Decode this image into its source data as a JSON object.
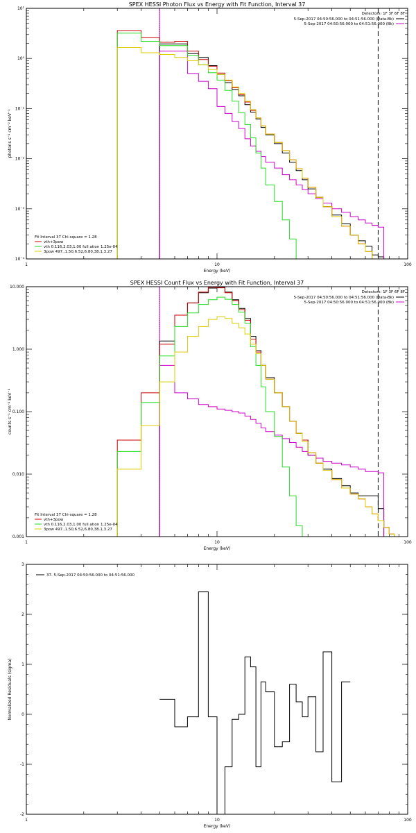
{
  "chart_data": [
    {
      "type": "line",
      "title": "SPEX HESSI Photon Flux vs Energy with Fit Function, Interval 37",
      "xlabel": "Energy (keV)",
      "ylabel": "photons s⁻¹ cm⁻² keV⁻¹",
      "xscale": "log",
      "yscale": "log",
      "xlim": [
        1,
        100
      ],
      "ylim": [
        0.0001,
        10
      ],
      "xticks": [
        {
          "v": 1,
          "label": "1"
        },
        {
          "v": 10,
          "label": "10"
        },
        {
          "v": 100,
          "label": "100"
        }
      ],
      "yticks": [
        {
          "v": 0.0001,
          "label": "10⁻⁴"
        },
        {
          "v": 0.001,
          "label": "10⁻³"
        },
        {
          "v": 0.01,
          "label": "10⁻²"
        },
        {
          "v": 0.1,
          "label": "10⁻¹"
        },
        {
          "v": 1,
          "label": "10⁰"
        },
        {
          "v": 10,
          "label": "10¹"
        }
      ],
      "vlines": [
        {
          "x": 5,
          "style": "dotted",
          "color": "#000000"
        },
        {
          "x": 5,
          "style": "solid",
          "color": "#cc00cc"
        },
        {
          "x": 70,
          "style": "dashed",
          "color": "#000000"
        }
      ],
      "legend_tr_title": "Detectors: 1F 3F 6F 8F",
      "legend_tr": [
        {
          "label": "5-Sep-2017 04:50:56.000 to 04:51:56.000 (Data-Bk)",
          "color": "#000000"
        },
        {
          "label": "5-Sep-2017 04:50:56.000 to 04:51:56.000 (Bk)",
          "color": "#cc00cc"
        }
      ],
      "legend_bl_title": "Fit Interval 37   Chi-square = 1.28",
      "legend_bl": [
        {
          "label": "vth+3pow",
          "color": "#cc0000"
        },
        {
          "label": "vth 0.116,2.03,1.00  full ation 1.25e-04",
          "color": "#22dd22"
        },
        {
          "label": "3pow 497.,1.50,6.52,6.80,38.1,3.27",
          "color": "#ddcc00"
        }
      ],
      "edges": [
        3,
        4,
        5,
        6,
        7,
        8,
        9,
        10,
        11,
        12,
        13,
        14,
        15,
        16,
        17,
        18,
        20,
        22,
        24,
        26,
        28,
        30,
        33,
        36,
        40,
        45,
        50,
        55,
        60,
        65,
        70,
        75
      ],
      "series": [
        {
          "name": "Data-Bk",
          "color": "#000000",
          "start": 2,
          "values": [
            1.95,
            1.95,
            1.25,
            1.05,
            0.72,
            0.48,
            0.33,
            0.24,
            0.18,
            0.12,
            0.085,
            0.062,
            0.042,
            0.03,
            0.02,
            0.013,
            0.0085,
            0.0058,
            0.0038,
            0.0025,
            0.0017,
            0.0011,
            0.00075,
            0.0005,
            0.0003,
            0.00023,
            0.00018,
            0.00012,
            0.00011
          ]
        },
        {
          "name": "Bk",
          "color": "#cc00cc",
          "start": 2,
          "values": [
            1.4,
            1.4,
            0.5,
            0.35,
            0.25,
            0.11,
            0.08,
            0.055,
            0.04,
            0.025,
            0.018,
            0.014,
            0.011,
            0.0085,
            0.0065,
            0.0048,
            0.0038,
            0.003,
            0.0024,
            0.002,
            0.0016,
            0.0013,
            0.001,
            0.00085,
            0.0007,
            0.0006,
            0.00052,
            0.00047,
            0.00043
          ]
        },
        {
          "name": "vth+3pow",
          "color": "#cc0000",
          "start": 0,
          "values": [
            3.6,
            2.6,
            2.1,
            2.2,
            1.4,
            0.95,
            0.7,
            0.51,
            0.36,
            0.26,
            0.19,
            0.135,
            0.092,
            0.065,
            0.045,
            0.031,
            0.021,
            0.0145,
            0.0095,
            0.0063,
            0.0041,
            0.0027,
            0.0017,
            0.0011,
            0.0007,
            0.00045,
            0.0003,
            0.0002,
            0.00014,
            0.0001,
            0.0001
          ]
        },
        {
          "name": "vth",
          "color": "#22dd22",
          "start": 0,
          "values": [
            3.2,
            2.2,
            1.8,
            1.8,
            1.15,
            0.75,
            0.52,
            0.37,
            0.23,
            0.14,
            0.082,
            0.048,
            0.026,
            0.013,
            0.0065,
            0.003,
            0.0014,
            0.0006,
            0.00025,
            0.0001,
            0.0001
          ]
        },
        {
          "name": "3pow",
          "color": "#ddcc00",
          "start": 0,
          "values": [
            1.65,
            1.3,
            1.2,
            1.05,
            0.9,
            0.75,
            0.6,
            0.48,
            0.37,
            0.27,
            0.2,
            0.14,
            0.095,
            0.065,
            0.045,
            0.031,
            0.021,
            0.0145,
            0.0095,
            0.0063,
            0.0041,
            0.0027,
            0.0017,
            0.0011,
            0.0007,
            0.00045,
            0.0003,
            0.0002,
            0.00014,
            0.0001,
            0.0001
          ]
        }
      ]
    },
    {
      "type": "line",
      "title": "SPEX HESSI Count Flux vs Energy with Fit Function, Interval 37",
      "xlabel": "Energy (keV)",
      "ylabel": "counts s⁻¹ cm⁻² keV⁻¹",
      "xscale": "log",
      "yscale": "log",
      "xlim": [
        1,
        100
      ],
      "ylim": [
        0.001,
        10
      ],
      "xticks": [
        {
          "v": 1,
          "label": "1"
        },
        {
          "v": 10,
          "label": "10"
        },
        {
          "v": 100,
          "label": "100"
        }
      ],
      "yticks": [
        {
          "v": 0.001,
          "label": "0.001"
        },
        {
          "v": 0.01,
          "label": "0.010"
        },
        {
          "v": 0.1,
          "label": "0.100"
        },
        {
          "v": 1,
          "label": "1.000"
        },
        {
          "v": 10,
          "label": "10.000"
        }
      ],
      "vlines": [
        {
          "x": 5,
          "style": "dotted",
          "color": "#000000"
        },
        {
          "x": 5,
          "style": "solid",
          "color": "#cc00cc"
        },
        {
          "x": 70,
          "style": "dashed",
          "color": "#000000"
        }
      ],
      "legend_tr_title": "Detectors: 1F 3F 6F 8F",
      "legend_tr": [
        {
          "label": "5-Sep-2017 04:50:56.000 to 04:51:56.000 (Data-Bk)",
          "color": "#000000"
        },
        {
          "label": "5-Sep-2017 04:50:56.000 to 04:51:56.000 (Bk)",
          "color": "#cc00cc"
        }
      ],
      "legend_bl_title": "Fit Interval 37   Chi-square = 1.28",
      "legend_bl": [
        {
          "label": "vth+3pow",
          "color": "#cc0000"
        },
        {
          "label": "vth 0.116,2.03,1.00  full ation 1.25e-04",
          "color": "#22dd22"
        },
        {
          "label": "3pow 497.,1.50,6.52,6.80,38.1,3.27",
          "color": "#ddcc00"
        }
      ],
      "edges": [
        3,
        4,
        5,
        6,
        7,
        8,
        9,
        10,
        11,
        12,
        13,
        14,
        15,
        16,
        17,
        18,
        20,
        22,
        24,
        26,
        28,
        30,
        33,
        36,
        40,
        45,
        50,
        55,
        60,
        65,
        70,
        75,
        80,
        85
      ],
      "series": [
        {
          "name": "Data-Bk",
          "color": "#000000",
          "start": 2,
          "values": [
            1.35,
            3.5,
            5.5,
            8.0,
            9.5,
            9.8,
            8.2,
            6.2,
            4.5,
            3.1,
            1.6,
            0.95,
            0.55,
            0.35,
            0.2,
            0.12,
            0.07,
            0.045,
            0.035,
            0.02,
            0.015,
            0.012,
            0.0085,
            0.0065,
            0.005,
            0.0045,
            0.0045,
            0.0045,
            0.0028
          ]
        },
        {
          "name": "Bk",
          "color": "#cc00cc",
          "start": 2,
          "values": [
            0.55,
            0.2,
            0.16,
            0.13,
            0.12,
            0.11,
            0.105,
            0.1,
            0.095,
            0.085,
            0.075,
            0.065,
            0.055,
            0.048,
            0.042,
            0.037,
            0.032,
            0.027,
            0.023,
            0.02,
            0.018,
            0.016,
            0.015,
            0.014,
            0.013,
            0.012,
            0.011,
            0.011,
            0.0105
          ]
        },
        {
          "name": "vth+3pow",
          "color": "#cc0000",
          "start": 0,
          "values": [
            0.035,
            0.2,
            1.2,
            3.5,
            5.5,
            8.2,
            9.8,
            9.6,
            8.0,
            6.0,
            4.3,
            2.9,
            1.45,
            0.9,
            0.55,
            0.33,
            0.2,
            0.12,
            0.07,
            0.045,
            0.035,
            0.022,
            0.015,
            0.0115,
            0.0082,
            0.006,
            0.0048,
            0.004,
            0.003,
            0.0023,
            0.0018,
            0.0014,
            0.0011
          ]
        },
        {
          "name": "vth",
          "color": "#22dd22",
          "start": 0,
          "values": [
            0.023,
            0.14,
            0.78,
            2.3,
            3.8,
            5.2,
            6.2,
            6.8,
            6.3,
            5.2,
            3.9,
            2.6,
            1.1,
            0.55,
            0.25,
            0.1,
            0.04,
            0.013,
            0.0045,
            0.0015,
            0.001
          ]
        },
        {
          "name": "3pow",
          "color": "#ddcc00",
          "start": 0,
          "values": [
            0.012,
            0.06,
            0.3,
            0.9,
            1.6,
            2.3,
            3.0,
            3.3,
            3.1,
            2.6,
            2.2,
            1.75,
            1.2,
            0.85,
            0.55,
            0.33,
            0.2,
            0.12,
            0.07,
            0.045,
            0.033,
            0.022,
            0.015,
            0.0115,
            0.0082,
            0.006,
            0.0048,
            0.004,
            0.003,
            0.0023,
            0.0018,
            0.0014,
            0.0011
          ]
        }
      ]
    },
    {
      "type": "line",
      "title": "",
      "xlabel": "Energy (keV)",
      "ylabel": "Normalized Residuals (sigma)",
      "xscale": "log",
      "yscale": "linear",
      "xlim": [
        1,
        100
      ],
      "ylim": [
        -2,
        3
      ],
      "xticks": [
        {
          "v": 1,
          "label": "1"
        },
        {
          "v": 10,
          "label": "10"
        },
        {
          "v": 100,
          "label": "100"
        }
      ],
      "yticks": [
        {
          "v": -2,
          "label": "-2"
        },
        {
          "v": -1,
          "label": "-1"
        },
        {
          "v": 0,
          "label": "0"
        },
        {
          "v": 1,
          "label": "1"
        },
        {
          "v": 2,
          "label": "2"
        },
        {
          "v": 3,
          "label": "3"
        }
      ],
      "legend_tl": [
        {
          "label": "37.  5-Sep-2017 04:50:56.000 to 04:51:56.000",
          "color": "#000000"
        }
      ],
      "edges": [
        5,
        6,
        7,
        8,
        9,
        10,
        11,
        12,
        13,
        14,
        15,
        16,
        17,
        18,
        20,
        22,
        24,
        26,
        28,
        30,
        33,
        36,
        40,
        45,
        50,
        55,
        60,
        65,
        70
      ],
      "series": [
        {
          "name": "residuals",
          "color": "#000000",
          "start": 0,
          "values": [
            0.3,
            -0.25,
            -0.05,
            2.45,
            -0.05,
            -2.0,
            -1.05,
            -0.1,
            0.0,
            1.15,
            0.95,
            -1.05,
            0.65,
            0.45,
            -0.65,
            -0.55,
            0.6,
            0.25,
            -0.05,
            0.35,
            -0.75,
            1.25,
            -1.35,
            0.65
          ]
        }
      ]
    }
  ]
}
